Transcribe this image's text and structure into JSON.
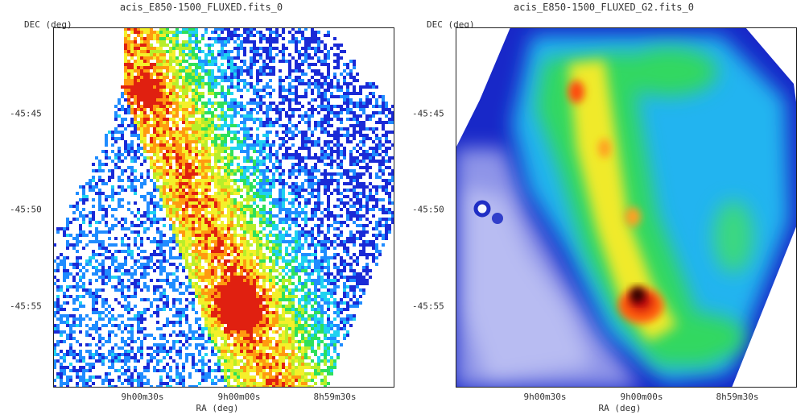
{
  "panels": [
    {
      "title": "acis_E850-1500_FLUXED.fits_0",
      "ylabel": "DEC (deg)",
      "xlabel": "RA (deg)",
      "yticks": [
        "-45:45",
        "-45:50",
        "-45:55"
      ],
      "xticks": [
        "9h00m30s",
        "9h00m00s",
        "8h59m30s"
      ],
      "image": "raw binned X-ray counts map (noisy pixels)"
    },
    {
      "title": "acis_E850-1500_FLUXED_G2.fits_0",
      "ylabel": "DEC (deg)",
      "xlabel": "RA (deg)",
      "yticks": [
        "-45:45",
        "-45:50",
        "-45:55"
      ],
      "xticks": [
        "9h00m30s",
        "9h00m00s",
        "8h59m30s"
      ],
      "image": "Gaussian-smoothed X-ray flux map"
    }
  ],
  "colors": {
    "low": "#1a2ad6",
    "mid_low": "#1fb3ff",
    "mid": "#2ee05a",
    "mid_high": "#f4f02a",
    "high": "#ff5a10",
    "peak": "#2a0000",
    "outside": "#4a4fd8"
  }
}
